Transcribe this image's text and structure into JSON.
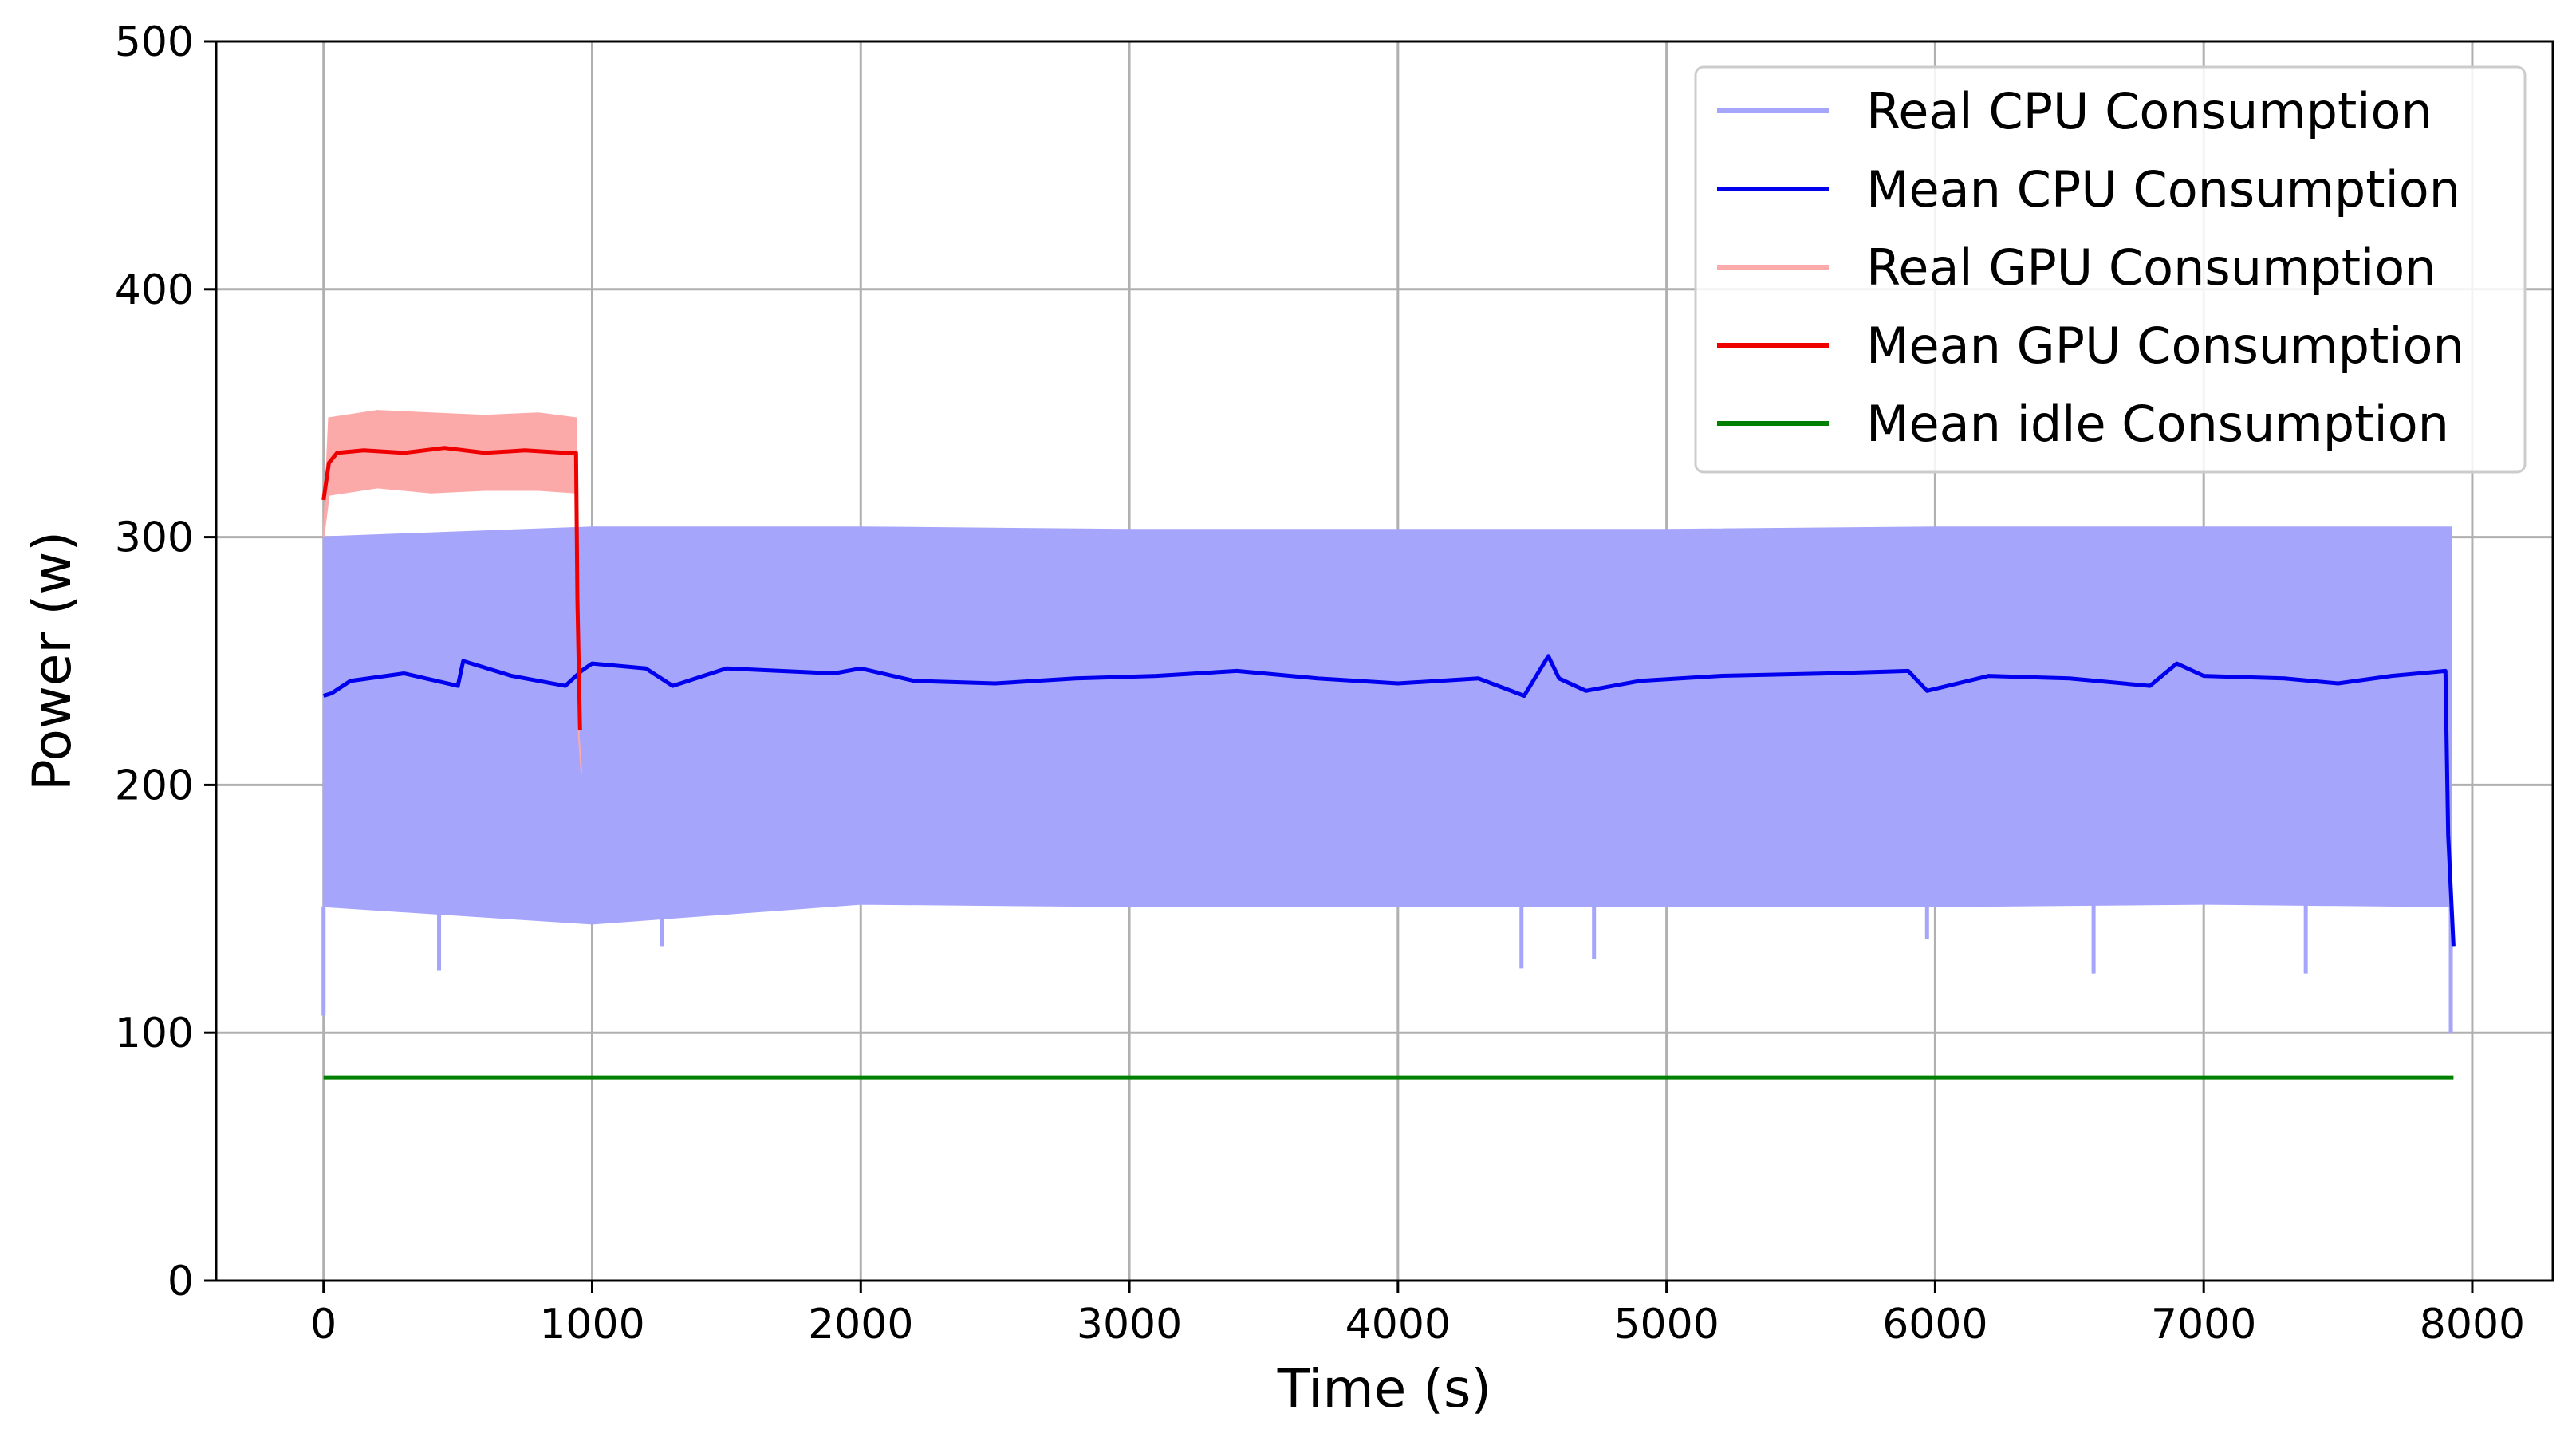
{
  "chart_data": {
    "type": "line",
    "title": "",
    "xlabel": "Time (s)",
    "ylabel": "Power (w)",
    "xlim": [
      -400,
      8300
    ],
    "ylim": [
      0,
      500
    ],
    "xticks": [
      0,
      1000,
      2000,
      3000,
      4000,
      5000,
      6000,
      7000,
      8000
    ],
    "yticks": [
      0,
      100,
      200,
      300,
      400,
      500
    ],
    "grid": true,
    "legend_position": "top-right",
    "series": [
      {
        "name": "Real CPU Consumption",
        "color": "#a5a5fb",
        "style": "band",
        "x": [
          0,
          1000,
          2000,
          3000,
          4000,
          5000,
          6000,
          7000,
          7920
        ],
        "upper": [
          300,
          304,
          304,
          303,
          303,
          303,
          304,
          304,
          304
        ],
        "lower": [
          151,
          144,
          152,
          151,
          151,
          151,
          151,
          152,
          151
        ],
        "spike_lows": [
          {
            "x": 0,
            "value": 107
          },
          {
            "x": 430,
            "value": 125
          },
          {
            "x": 1260,
            "value": 135
          },
          {
            "x": 4460,
            "value": 126
          },
          {
            "x": 4730,
            "value": 130
          },
          {
            "x": 5970,
            "value": 138
          },
          {
            "x": 6590,
            "value": 124
          },
          {
            "x": 7380,
            "value": 124
          },
          {
            "x": 7920,
            "value": 100
          }
        ]
      },
      {
        "name": "Mean CPU Consumption",
        "color": "#0000ee",
        "x": [
          0,
          30,
          100,
          300,
          500,
          520,
          700,
          900,
          960,
          1000,
          1200,
          1300,
          1500,
          1700,
          1900,
          2000,
          2200,
          2500,
          2800,
          3100,
          3400,
          3700,
          4000,
          4300,
          4470,
          4560,
          4600,
          4700,
          4900,
          5200,
          5600,
          5900,
          5970,
          6200,
          6500,
          6800,
          6900,
          7000,
          7300,
          7500,
          7700,
          7900,
          7910,
          7930
        ],
        "y": [
          236,
          237,
          242,
          245,
          240,
          250,
          244,
          240,
          246,
          249,
          247,
          240,
          247,
          246,
          245,
          247,
          242,
          241,
          243,
          244,
          246,
          243,
          241,
          243,
          236,
          252,
          243,
          238,
          242,
          244,
          245,
          246,
          238,
          244,
          243,
          240,
          249,
          244,
          243,
          241,
          244,
          246,
          180,
          135
        ]
      },
      {
        "name": "Real GPU Consumption",
        "color": "#fca9a9",
        "style": "band",
        "x": [
          0,
          20,
          200,
          400,
          600,
          800,
          940,
          950,
          960
        ],
        "upper": [
          300,
          348,
          351,
          350,
          349,
          350,
          348,
          220,
          205
        ],
        "lower": [
          300,
          317,
          320,
          318,
          319,
          319,
          318,
          220,
          205
        ]
      },
      {
        "name": "Mean GPU Consumption",
        "color": "#ee0000",
        "x": [
          0,
          20,
          50,
          150,
          300,
          450,
          600,
          750,
          900,
          940,
          945,
          955
        ],
        "y": [
          315,
          330,
          334,
          335,
          334,
          336,
          334,
          335,
          334,
          334,
          275,
          222
        ]
      },
      {
        "name": "Mean idle Consumption",
        "color": "#008000",
        "x": [
          0,
          7930
        ],
        "y": [
          82,
          82
        ]
      }
    ]
  }
}
